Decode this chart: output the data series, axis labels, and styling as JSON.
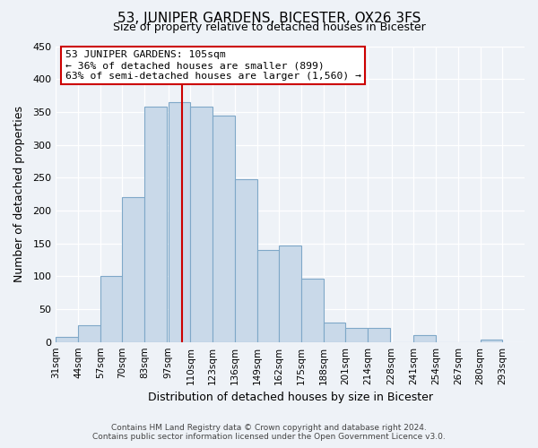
{
  "title": "53, JUNIPER GARDENS, BICESTER, OX26 3FS",
  "subtitle": "Size of property relative to detached houses in Bicester",
  "xlabel": "Distribution of detached houses by size in Bicester",
  "ylabel": "Number of detached properties",
  "bin_labels": [
    "31sqm",
    "44sqm",
    "57sqm",
    "70sqm",
    "83sqm",
    "97sqm",
    "110sqm",
    "123sqm",
    "136sqm",
    "149sqm",
    "162sqm",
    "175sqm",
    "188sqm",
    "201sqm",
    "214sqm",
    "228sqm",
    "241sqm",
    "254sqm",
    "267sqm",
    "280sqm",
    "293sqm"
  ],
  "bin_edges": [
    31,
    44,
    57,
    70,
    83,
    97,
    110,
    123,
    136,
    149,
    162,
    175,
    188,
    201,
    214,
    228,
    241,
    254,
    267,
    280,
    293
  ],
  "bar_heights": [
    8,
    25,
    100,
    220,
    358,
    365,
    358,
    345,
    248,
    140,
    147,
    97,
    30,
    22,
    22,
    0,
    10,
    0,
    0,
    3
  ],
  "bar_color": "#c9d9e9",
  "bar_edgecolor": "#7fa8c8",
  "property_value": 105,
  "annotation_title": "53 JUNIPER GARDENS: 105sqm",
  "annotation_line1": "← 36% of detached houses are smaller (899)",
  "annotation_line2": "63% of semi-detached houses are larger (1,560) →",
  "annotation_box_color": "#ffffff",
  "annotation_box_edgecolor": "#cc0000",
  "vline_color": "#cc0000",
  "ylim": [
    0,
    450
  ],
  "yticks": [
    0,
    50,
    100,
    150,
    200,
    250,
    300,
    350,
    400,
    450
  ],
  "footer_line1": "Contains HM Land Registry data © Crown copyright and database right 2024.",
  "footer_line2": "Contains public sector information licensed under the Open Government Licence v3.0.",
  "bg_color": "#eef2f7",
  "plot_bg_color": "#eef2f7",
  "grid_color": "#ffffff"
}
